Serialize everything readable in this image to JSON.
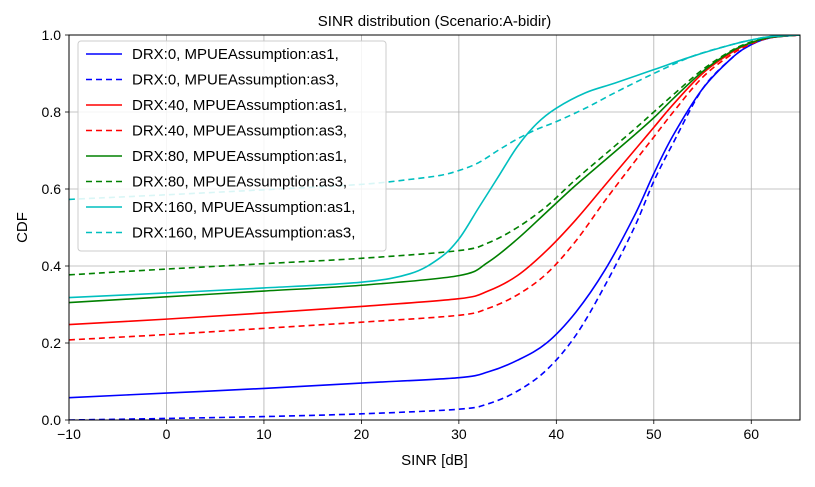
{
  "chart_data": {
    "type": "line",
    "title": "SINR distribution (Scenario:A-bidir)",
    "xlabel": "SINR [dB]",
    "ylabel": "CDF",
    "xlim": [
      -10,
      65
    ],
    "ylim": [
      0,
      1
    ],
    "xticks": [
      -10,
      0,
      10,
      20,
      30,
      40,
      50,
      60
    ],
    "yticks": [
      0.0,
      0.2,
      0.4,
      0.6,
      0.8,
      1.0
    ],
    "xtick_labels": [
      "−10",
      "0",
      "10",
      "20",
      "30",
      "40",
      "50",
      "60"
    ],
    "ytick_labels": [
      "0.0",
      "0.2",
      "0.4",
      "0.6",
      "0.8",
      "1.0"
    ],
    "grid": true,
    "legend_position": "top-left",
    "series": [
      {
        "name": "DRX:0, MPUEAssumption:as1,",
        "color": "#0000ff",
        "dash": "solid",
        "x": [
          -10,
          0,
          10,
          20,
          30,
          33,
          36,
          39,
          42,
          45,
          48,
          50,
          52,
          55,
          58,
          60,
          62,
          65
        ],
        "y": [
          0.058,
          0.07,
          0.082,
          0.096,
          0.11,
          0.125,
          0.155,
          0.2,
          0.28,
          0.39,
          0.53,
          0.64,
          0.74,
          0.86,
          0.94,
          0.975,
          0.993,
          1.0
        ]
      },
      {
        "name": "DRX:0, MPUEAssumption:as3,",
        "color": "#0000ff",
        "dash": "dashed",
        "x": [
          -10,
          0,
          10,
          20,
          30,
          33,
          36,
          39,
          42,
          45,
          48,
          50,
          52,
          55,
          58,
          60,
          62,
          65
        ],
        "y": [
          0.0,
          0.004,
          0.009,
          0.016,
          0.028,
          0.042,
          0.075,
          0.13,
          0.22,
          0.35,
          0.5,
          0.62,
          0.72,
          0.86,
          0.94,
          0.975,
          0.993,
          1.0
        ]
      },
      {
        "name": "DRX:40, MPUEAssumption:as1,",
        "color": "#ff0000",
        "dash": "solid",
        "x": [
          -10,
          0,
          10,
          20,
          30,
          33,
          36,
          39,
          42,
          45,
          48,
          50,
          52,
          55,
          58,
          60,
          62,
          65
        ],
        "y": [
          0.248,
          0.262,
          0.278,
          0.295,
          0.315,
          0.335,
          0.375,
          0.44,
          0.52,
          0.61,
          0.7,
          0.76,
          0.82,
          0.9,
          0.955,
          0.98,
          0.994,
          1.0
        ]
      },
      {
        "name": "DRX:40, MPUEAssumption:as3,",
        "color": "#ff0000",
        "dash": "dashed",
        "x": [
          -10,
          0,
          10,
          20,
          30,
          33,
          36,
          39,
          42,
          45,
          48,
          50,
          52,
          55,
          58,
          60,
          62,
          65
        ],
        "y": [
          0.208,
          0.222,
          0.238,
          0.254,
          0.272,
          0.29,
          0.325,
          0.38,
          0.465,
          0.57,
          0.67,
          0.735,
          0.8,
          0.89,
          0.95,
          0.977,
          0.993,
          1.0
        ]
      },
      {
        "name": "DRX:80, MPUEAssumption:as1,",
        "color": "#008000",
        "dash": "solid",
        "x": [
          -10,
          0,
          10,
          20,
          30,
          33,
          36,
          39,
          42,
          45,
          48,
          50,
          52,
          55,
          58,
          60,
          62,
          65
        ],
        "y": [
          0.305,
          0.32,
          0.335,
          0.35,
          0.375,
          0.41,
          0.47,
          0.54,
          0.61,
          0.675,
          0.74,
          0.785,
          0.835,
          0.905,
          0.958,
          0.98,
          0.994,
          1.0
        ]
      },
      {
        "name": "DRX:80, MPUEAssumption:as3,",
        "color": "#008000",
        "dash": "dashed",
        "x": [
          -10,
          0,
          10,
          20,
          30,
          33,
          36,
          39,
          42,
          45,
          48,
          50,
          52,
          55,
          58,
          60,
          62,
          65
        ],
        "y": [
          0.377,
          0.392,
          0.406,
          0.42,
          0.44,
          0.46,
          0.5,
          0.555,
          0.625,
          0.69,
          0.755,
          0.8,
          0.845,
          0.91,
          0.96,
          0.982,
          0.994,
          1.0
        ]
      },
      {
        "name": "DRX:160, MPUEAssumption:as1,",
        "color": "#00bfbf",
        "dash": "solid",
        "x": [
          -10,
          0,
          10,
          20,
          25,
          28,
          30,
          32,
          34,
          36,
          38,
          40,
          43,
          46,
          50,
          54,
          58,
          60,
          62,
          65
        ],
        "y": [
          0.318,
          0.33,
          0.343,
          0.358,
          0.38,
          0.42,
          0.47,
          0.55,
          0.63,
          0.71,
          0.77,
          0.81,
          0.85,
          0.875,
          0.91,
          0.945,
          0.975,
          0.987,
          0.996,
          1.0
        ]
      },
      {
        "name": "DRX:160, MPUEAssumption:as3,",
        "color": "#00bfbf",
        "dash": "dashed",
        "x": [
          -10,
          0,
          10,
          20,
          25,
          28,
          30,
          32,
          34,
          36,
          38,
          40,
          43,
          46,
          50,
          54,
          58,
          60,
          62,
          65
        ],
        "y": [
          0.573,
          0.585,
          0.598,
          0.612,
          0.625,
          0.635,
          0.648,
          0.668,
          0.7,
          0.73,
          0.755,
          0.775,
          0.81,
          0.85,
          0.9,
          0.945,
          0.975,
          0.987,
          0.996,
          1.0
        ]
      }
    ]
  }
}
